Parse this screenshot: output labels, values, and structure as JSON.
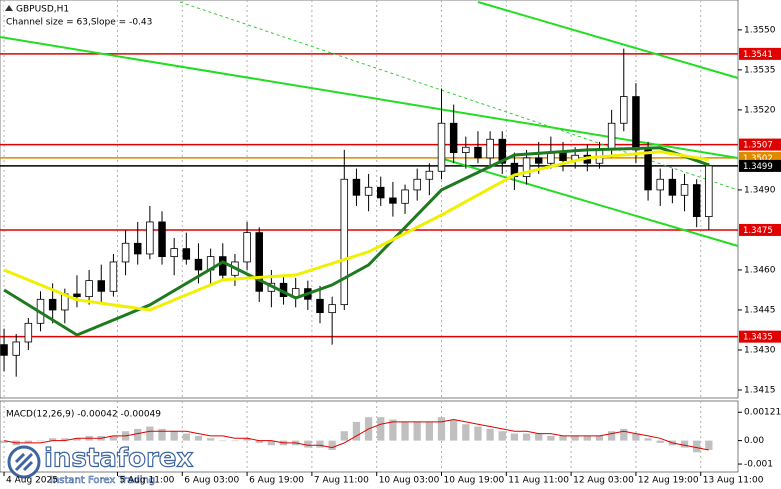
{
  "chart_data": [
    {
      "type": "candlestick",
      "title": "GBPUSD,H1",
      "subtitle": "Channel size = 63,Slope = -0.43",
      "x": [
        0,
        3,
        6,
        9,
        12,
        15,
        18,
        21,
        24,
        27,
        30,
        33,
        36,
        39,
        42,
        45,
        48,
        51,
        54,
        57,
        60,
        63,
        66,
        69,
        72,
        75,
        78,
        81,
        84,
        87,
        90,
        93,
        96,
        99,
        102,
        105,
        108,
        111,
        114,
        117,
        120,
        123,
        126,
        129,
        132,
        135,
        138,
        141,
        144,
        147,
        150,
        153,
        156,
        159,
        162,
        165,
        168,
        171,
        174
      ],
      "open": [
        1.3432,
        1.3428,
        1.3433,
        1.344,
        1.3449,
        1.3445,
        1.3451,
        1.345,
        1.3456,
        1.3452,
        1.3463,
        1.347,
        1.3466,
        1.3478,
        1.3465,
        1.3468,
        1.3464,
        1.346,
        1.3465,
        1.3458,
        1.3463,
        1.3474,
        1.3452,
        1.3455,
        1.345,
        1.3453,
        1.3449,
        1.3444,
        1.3447,
        1.3494,
        1.3488,
        1.3491,
        1.3487,
        1.3485,
        1.349,
        1.3494,
        1.3497,
        1.3515,
        1.3504,
        1.3506,
        1.3502,
        1.3509,
        1.35,
        1.3495,
        1.3502,
        1.35,
        1.3504,
        1.3501,
        1.3503,
        1.35,
        1.3505,
        1.3515,
        1.3525,
        1.3505,
        1.349,
        1.3494,
        1.3488,
        1.3492,
        1.348
      ],
      "high": [
        1.3438,
        1.3436,
        1.3442,
        1.3452,
        1.3455,
        1.3453,
        1.3458,
        1.346,
        1.3462,
        1.3466,
        1.3475,
        1.3478,
        1.3484,
        1.3482,
        1.3472,
        1.3474,
        1.347,
        1.3468,
        1.347,
        1.3466,
        1.3478,
        1.3476,
        1.346,
        1.3458,
        1.3457,
        1.3456,
        1.3454,
        1.345,
        1.3505,
        1.3498,
        1.3496,
        1.3495,
        1.3493,
        1.3492,
        1.3498,
        1.35,
        1.3528,
        1.3522,
        1.351,
        1.3512,
        1.3512,
        1.3512,
        1.3504,
        1.3505,
        1.3508,
        1.351,
        1.3508,
        1.3506,
        1.3507,
        1.3508,
        1.352,
        1.3543,
        1.353,
        1.3508,
        1.3498,
        1.3498,
        1.3496,
        1.3494,
        1.35
      ],
      "low": [
        1.3422,
        1.342,
        1.343,
        1.3437,
        1.344,
        1.344,
        1.3446,
        1.3447,
        1.3448,
        1.345,
        1.3458,
        1.3462,
        1.3464,
        1.3462,
        1.3458,
        1.3462,
        1.3455,
        1.3454,
        1.3456,
        1.3454,
        1.346,
        1.3448,
        1.3446,
        1.3447,
        1.3446,
        1.3445,
        1.344,
        1.3432,
        1.3445,
        1.3484,
        1.3482,
        1.3484,
        1.348,
        1.3481,
        1.3486,
        1.3488,
        1.3494,
        1.35,
        1.3498,
        1.35,
        1.3498,
        1.3496,
        1.349,
        1.3492,
        1.3496,
        1.3498,
        1.3497,
        1.3498,
        1.3497,
        1.3498,
        1.3502,
        1.3512,
        1.35,
        1.3486,
        1.3484,
        1.3485,
        1.3482,
        1.3476,
        1.3475
      ],
      "close": [
        1.3428,
        1.3433,
        1.344,
        1.3449,
        1.3445,
        1.3451,
        1.345,
        1.3456,
        1.3452,
        1.3463,
        1.347,
        1.3466,
        1.3478,
        1.3465,
        1.3468,
        1.3464,
        1.346,
        1.3465,
        1.3458,
        1.3463,
        1.3474,
        1.3452,
        1.3455,
        1.345,
        1.3453,
        1.3449,
        1.3444,
        1.3447,
        1.3494,
        1.3488,
        1.3491,
        1.3487,
        1.3485,
        1.349,
        1.3494,
        1.3497,
        1.3515,
        1.3504,
        1.3506,
        1.3502,
        1.3509,
        1.35,
        1.3495,
        1.3502,
        1.35,
        1.3504,
        1.3501,
        1.3503,
        1.35,
        1.3505,
        1.3515,
        1.3525,
        1.3505,
        1.349,
        1.3494,
        1.3488,
        1.3492,
        1.348,
        1.3499
      ],
      "up_color": "#ffffff",
      "down_color": "#000000",
      "series": [
        {
          "color": "#1e7a1e",
          "x": [
            0,
            18,
            36,
            54,
            72,
            81,
            90,
            108,
            126,
            144,
            162,
            174
          ],
          "values": [
            1.34525,
            1.34356,
            1.34469,
            1.3463,
            1.34495,
            1.34544,
            1.34619,
            1.349,
            1.35031,
            1.3505,
            1.35058,
            1.34994
          ]
        },
        {
          "color": "#f0f000",
          "x": [
            0,
            18,
            36,
            54,
            72,
            90,
            108,
            126,
            144,
            162,
            174
          ],
          "values": [
            1.346,
            1.34488,
            1.3445,
            1.34563,
            1.34581,
            1.34668,
            1.34806,
            1.34956,
            1.3502,
            1.35043,
            1.35013
          ]
        }
      ],
      "levels": [
        {
          "value": 1.3541,
          "color": "#e00000"
        },
        {
          "value": 1.3507,
          "color": "#e00000"
        },
        {
          "value": 1.3502,
          "color": "#e08a00"
        },
        {
          "value": 1.3499,
          "color": "#000000"
        },
        {
          "value": 1.3475,
          "color": "#e00000"
        },
        {
          "value": 1.3435,
          "color": "#e00000"
        }
      ],
      "xlim": [
        -1,
        181.2
      ],
      "ylim": [
        1.3412,
        1.35612
      ],
      "yticks": [
        {
          "value": 1.355,
          "label": "1.3550"
        },
        1.3535,
        {
          "value": 1.352,
          "label": "1.3520"
        },
        {
          "value": 1.349,
          "label": "1.3490"
        },
        {
          "value": 1.346,
          "label": "1.3460"
        },
        1.3445,
        {
          "value": 1.343,
          "label": "1.3430"
        },
        1.3415
      ],
      "xticks": [
        {
          "value": 0,
          "label": "4 Aug 2025"
        },
        {
          "value": 28,
          "label": "5 Aug 11:00"
        },
        {
          "value": 44,
          "label": "6 Aug 03:00"
        },
        {
          "value": 60,
          "label": "6 Aug 19:00"
        },
        {
          "value": 76,
          "label": "7 Aug 11:00"
        },
        {
          "value": 92,
          "label": "10 Aug 03:00"
        },
        {
          "value": 108,
          "label": "10 Aug 19:00"
        },
        {
          "value": 124,
          "label": "11 Aug 11:00"
        },
        {
          "value": 140,
          "label": "12 Aug 03:00"
        },
        {
          "value": 156,
          "label": "12 Aug 19:00"
        },
        {
          "value": 172,
          "label": "13 Aug 11:00"
        }
      ],
      "grid": true
    },
    {
      "type": "macd",
      "title": "MACD(12,26,9) -0.00042 -0.00049",
      "x": [
        0,
        3,
        6,
        9,
        12,
        15,
        18,
        21,
        24,
        27,
        30,
        33,
        36,
        39,
        42,
        45,
        48,
        51,
        54,
        57,
        60,
        63,
        66,
        69,
        72,
        75,
        78,
        81,
        84,
        87,
        90,
        93,
        96,
        99,
        102,
        105,
        108,
        111,
        114,
        117,
        120,
        123,
        126,
        129,
        132,
        135,
        138,
        141,
        144,
        147,
        150,
        153,
        156,
        159,
        162,
        165,
        168,
        171,
        174
      ],
      "series": [
        {
          "style": "bars",
          "color": "#c0c0c0",
          "values": [
            -0.0001,
            -0.0002,
            -0.0001,
            0,
            0.0001,
            0.0001,
            0.0001,
            0.0002,
            0.0002,
            0.0002,
            0.0004,
            0.0005,
            0.0006,
            0.0005,
            0.0004,
            0.0003,
            0.0002,
            0.0001,
            0,
            0,
            0.0001,
            -0.0001,
            -0.0002,
            -0.0002,
            -0.0002,
            -0.0003,
            -0.0003,
            -0.0004,
            0.0004,
            0.0008,
            0.001,
            0.001,
            0.0009,
            0.0008,
            0.0008,
            0.0008,
            0.001,
            0.0009,
            0.0007,
            0.0006,
            0.0005,
            0.0004,
            0.0003,
            0.0003,
            0.0003,
            0.0002,
            0.0002,
            0.0002,
            0.0002,
            0.0002,
            0.0004,
            0.0005,
            0.0003,
            0.0001,
            -0.0001,
            -0.0002,
            -0.0003,
            -0.0005,
            -0.0004
          ]
        },
        {
          "style": "line",
          "color": "#e00000",
          "values": [
            0,
            -0.0001,
            -0.0001,
            -0.0001,
            0,
            0,
            0.0001,
            0.0001,
            0.0001,
            0.0002,
            0.0002,
            0.0003,
            0.0004,
            0.0004,
            0.0004,
            0.0004,
            0.0003,
            0.0002,
            0.0002,
            0.0001,
            0.0001,
            0,
            0,
            -0.0001,
            -0.0001,
            -0.0002,
            -0.0002,
            -0.0003,
            -0.0001,
            0.0002,
            0.0005,
            0.0007,
            0.0008,
            0.0008,
            0.0008,
            0.0008,
            0.0008,
            0.0009,
            0.0008,
            0.0007,
            0.0006,
            0.0005,
            0.0004,
            0.0004,
            0.0003,
            0.0003,
            0.0002,
            0.0002,
            0.0002,
            0.0002,
            0.0003,
            0.0004,
            0.0003,
            0.0002,
            0.0001,
            -0.0001,
            -0.0002,
            -0.0003,
            -0.0004
          ]
        }
      ],
      "xlim": [
        -1,
        181.2
      ],
      "ylim": [
        -0.00134,
        0.00169
      ],
      "yticks": [
        0.00121,
        {
          "value": 0,
          "label": "0.00"
        },
        -0.001
      ]
    }
  ],
  "watermark": {
    "brand": "instaforex",
    "tagline": "Instant Forex Trading"
  }
}
